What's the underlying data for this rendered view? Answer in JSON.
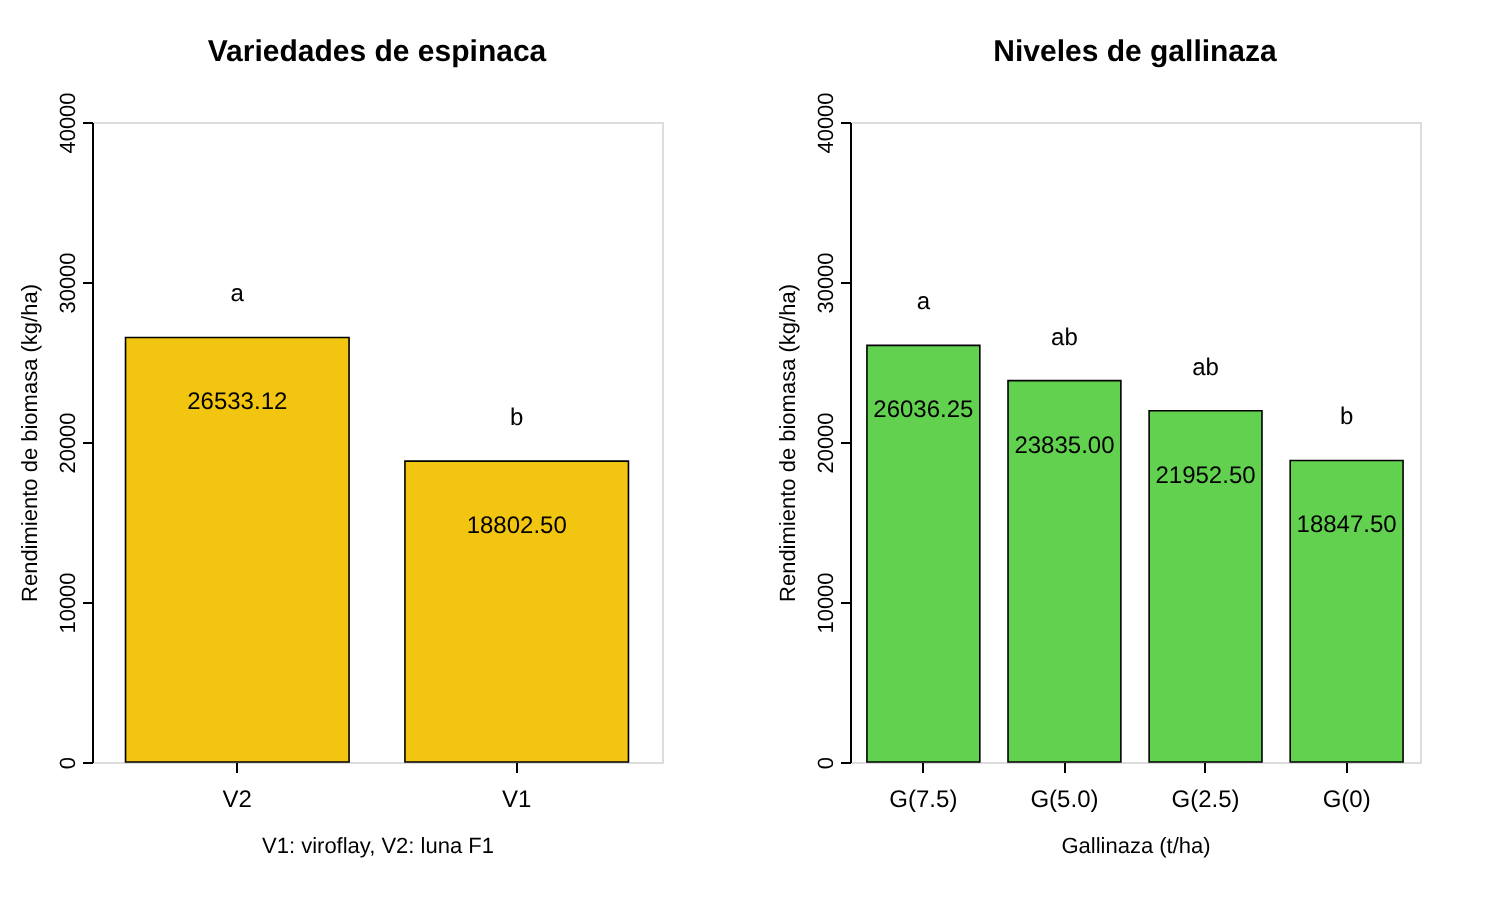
{
  "chart_data": [
    {
      "type": "bar",
      "title": "Variedades de espinaca",
      "xlabel": "V1: viroflay, V2: luna F1",
      "ylabel": "Rendimiento de biomasa (kg/ha)",
      "categories": [
        "V2",
        "V1"
      ],
      "values": [
        26533.12,
        18802.5
      ],
      "value_labels": [
        "26533.12",
        "18802.50"
      ],
      "color": "#f2c511",
      "ylim": [
        0,
        40000
      ],
      "yticks": [
        0,
        10000,
        20000,
        30000,
        40000
      ],
      "grid": false,
      "annotations": [
        "a",
        "b"
      ]
    },
    {
      "type": "bar",
      "title": "Niveles de gallinaza",
      "xlabel": "Gallinaza (t/ha)",
      "ylabel": "Rendimiento de biomasa (kg/ha)",
      "categories": [
        "G(7.5)",
        "G(5.0)",
        "G(2.5)",
        "G(0)"
      ],
      "values": [
        26036.25,
        23835.0,
        21952.5,
        18847.5
      ],
      "value_labels": [
        "26036.25",
        "23835.00",
        "21952.50",
        "18847.50"
      ],
      "color": "#61d14f",
      "ylim": [
        0,
        40000
      ],
      "yticks": [
        0,
        10000,
        20000,
        30000,
        40000
      ],
      "grid": false,
      "annotations": [
        "a",
        "ab",
        "ab",
        "b"
      ]
    }
  ]
}
